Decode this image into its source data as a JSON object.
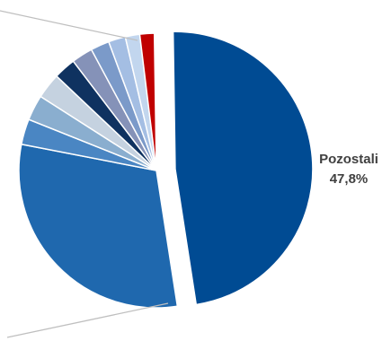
{
  "chart_data": {
    "type": "pie",
    "title": "",
    "slices": [
      {
        "label": "Pozostali",
        "value": 47.8,
        "display": "47,8%",
        "color": "#004B93",
        "exploded": true
      },
      {
        "value": 30.5,
        "color": "#1F68AE"
      },
      {
        "value": 3.0,
        "color": "#4A86C3"
      },
      {
        "value": 3.0,
        "color": "#8AAECF"
      },
      {
        "value": 3.0,
        "color": "#C5D2E0"
      },
      {
        "value": 2.6,
        "color": "#0F3260"
      },
      {
        "value": 2.5,
        "color": "#8592B8"
      },
      {
        "value": 2.2,
        "color": "#7B9AC9"
      },
      {
        "value": 2.0,
        "color": "#A4BEE3"
      },
      {
        "value": 1.7,
        "color": "#C2D6EE"
      },
      {
        "value": 1.7,
        "color": "#C00000"
      }
    ],
    "leader_line_color": "#BFBFBF"
  }
}
